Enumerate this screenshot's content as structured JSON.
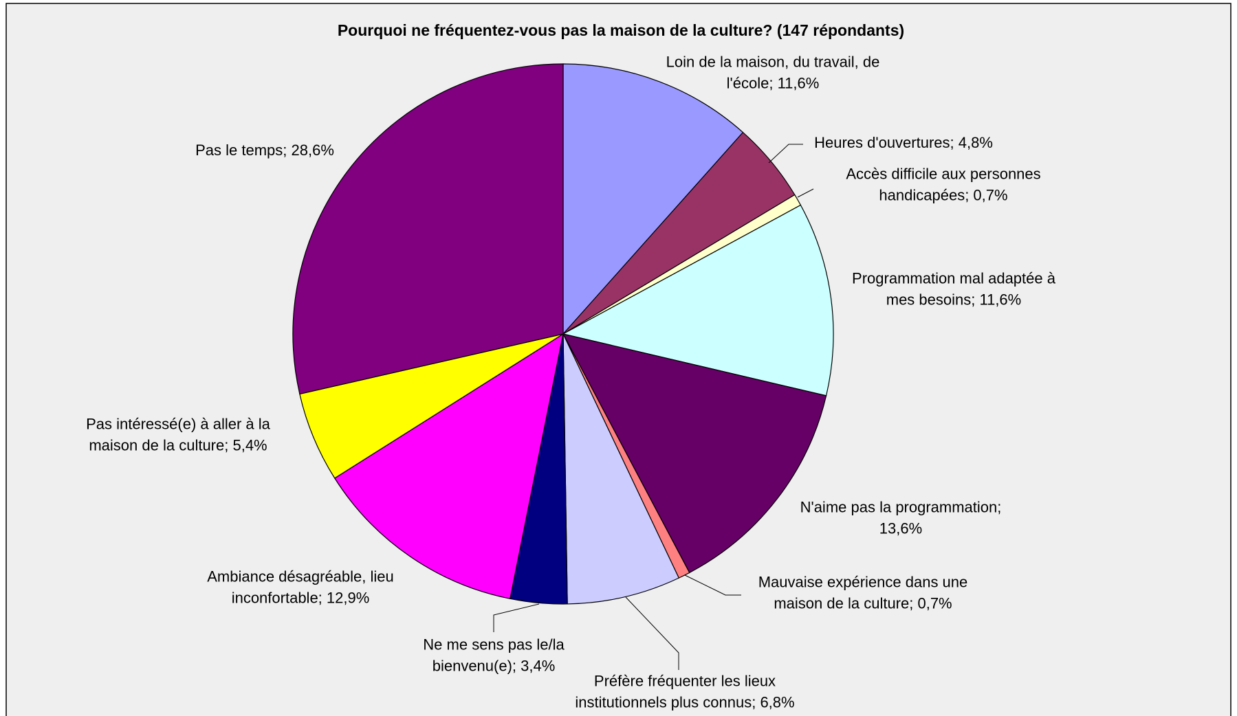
{
  "chart_data": {
    "type": "pie",
    "title": "Pourquoi ne fréquentez-vous pas la maison de la culture? (147 répondants)",
    "values": [
      11.6,
      4.8,
      0.7,
      11.6,
      13.6,
      0.7,
      6.8,
      3.4,
      12.9,
      5.4,
      28.6
    ],
    "value_labels": [
      [
        "Loin de la maison, du travail, de",
        "l'école; 11,6%"
      ],
      [
        "Heures d'ouvertures; 4,8%"
      ],
      [
        "Accès difficile aux personnes",
        "handicapées; 0,7%"
      ],
      [
        "Programmation mal adaptée à",
        "mes besoins; 11,6%"
      ],
      [
        "N'aime pas la programmation;",
        "13,6%"
      ],
      [
        "Mauvaise expérience dans une",
        "maison de la culture; 0,7%"
      ],
      [
        "Préfère fréquenter les lieux",
        "institutionnels plus connus; 6,8%"
      ],
      [
        "Ne me sens pas le/la",
        "bienvenu(e); 3,4%"
      ],
      [
        "Ambiance désagréable, lieu",
        "inconfortable; 12,9%"
      ],
      [
        "Pas intéressé(e) à aller à la",
        "maison de la culture; 5,4%"
      ],
      [
        "Pas le temps; 28,6%"
      ]
    ],
    "colors": [
      "#9999ff",
      "#993366",
      "#ffffcc",
      "#ccffff",
      "#660066",
      "#ff8080",
      "#ccccff",
      "#000080",
      "#ff00ff",
      "#ffff00",
      "#800080"
    ]
  }
}
